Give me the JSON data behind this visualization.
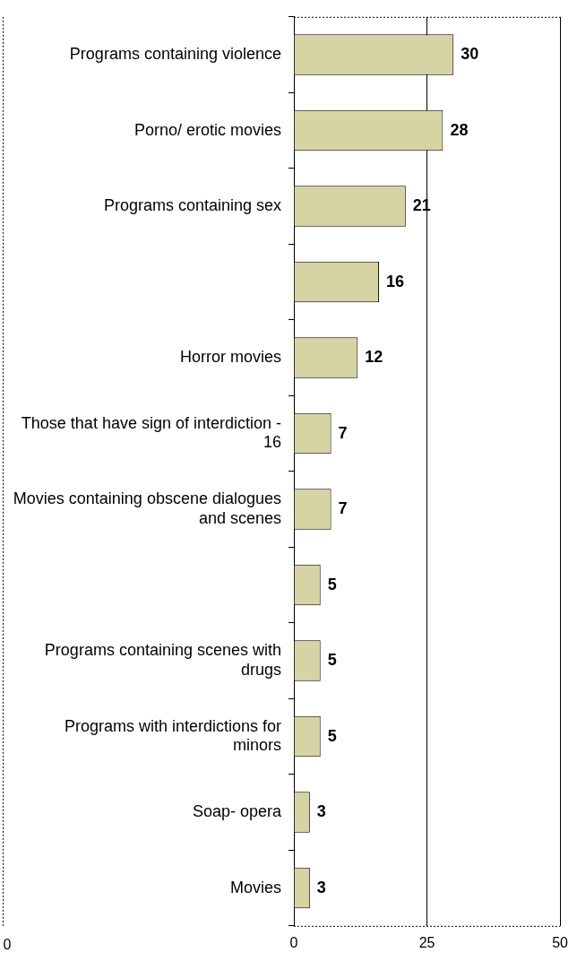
{
  "chart_data": {
    "type": "bar",
    "orientation": "horizontal",
    "categories": [
      "Programs containing violence",
      "Porno/ erotic movies",
      "Programs containing sex",
      null,
      "Horror movies",
      "Those that have sign of interdiction - 16",
      "Movies containing obscene dialogues and scenes",
      null,
      "Programs containing scenes with drugs",
      "Programs with interdictions for minors",
      "Soap- opera",
      "Movies"
    ],
    "values": [
      30,
      28,
      21,
      16,
      12,
      7,
      7,
      5,
      5,
      5,
      3,
      3
    ],
    "color": "#d6d3a5",
    "xlim": [
      0,
      50
    ],
    "xticks": [
      0,
      25,
      50
    ],
    "grid": "x",
    "legend": false,
    "data_labels": true,
    "annotations": [
      "0"
    ]
  }
}
